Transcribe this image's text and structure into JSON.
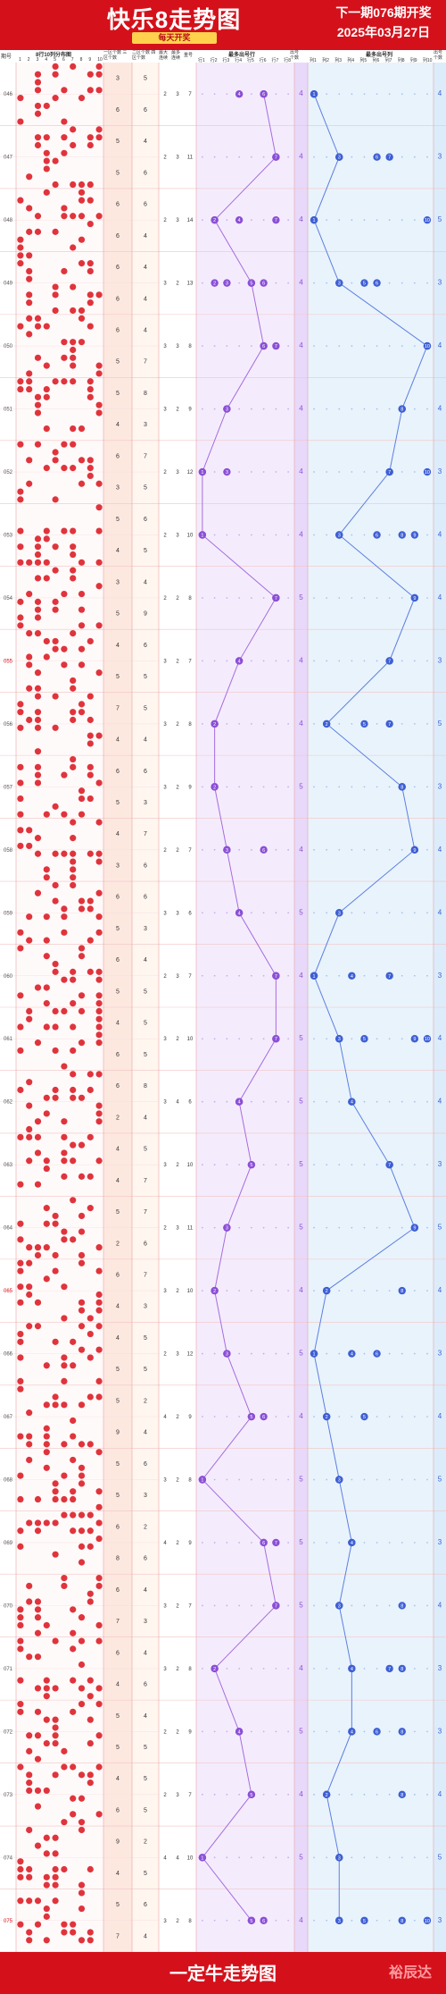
{
  "header": {
    "title": "快乐8走势图",
    "subtitle": "每天开奖",
    "next_issue": "下一期076期开奖",
    "draw_date": "2025年03月27日"
  },
  "columns": {
    "issue": "期号",
    "dist_title": "8行10列分布图",
    "dist_cols": [
      "1",
      "2",
      "3",
      "4",
      "5",
      "6",
      "7",
      "8",
      "9",
      "10"
    ],
    "area_a": "一区个数 三区个数",
    "area_b": "二区个数 四区个数",
    "max_col": "最大 连续",
    "max_row": "最多 连续",
    "repeat": "重号",
    "row_title": "最多出号行",
    "row_cols": [
      "行1",
      "行2",
      "行3",
      "行4",
      "行5",
      "行6",
      "行7",
      "行8"
    ],
    "row_count": "出号 个数",
    "col_title": "最多出号列",
    "col_cols": [
      "列1",
      "列2",
      "列3",
      "列4",
      "列5",
      "列6",
      "列7",
      "列8",
      "列9",
      "列10"
    ],
    "col_count": "出号 个数"
  },
  "colors": {
    "brand_red": "#d4111b",
    "row_line": "#a66be0",
    "col_line": "#5b7fe0",
    "ball_red": "#e0343c"
  },
  "footer": {
    "title": "一定牛走势图",
    "brand": "裕辰达"
  },
  "chart_data": {
    "type": "line",
    "issues": [
      "046",
      "047",
      "048",
      "049",
      "050",
      "051",
      "052",
      "053",
      "054",
      "055",
      "056",
      "057",
      "058",
      "059",
      "060",
      "061",
      "062",
      "063",
      "064",
      "065",
      "066",
      "067",
      "068",
      "069",
      "070",
      "071",
      "072",
      "073",
      "074",
      "075"
    ],
    "area_counts": [
      [
        [
          3,
          5
        ],
        [
          6,
          6
        ]
      ],
      [
        [
          5,
          4
        ],
        [
          5,
          6
        ]
      ],
      [
        [
          6,
          6
        ],
        [
          6,
          4
        ]
      ],
      [
        [
          6,
          4
        ],
        [
          6,
          4
        ]
      ],
      [
        [
          6,
          4
        ],
        [
          5,
          7
        ]
      ],
      [
        [
          5,
          8
        ],
        [
          4,
          3
        ]
      ],
      [
        [
          6,
          7
        ],
        [
          3,
          5
        ]
      ],
      [
        [
          5,
          6
        ],
        [
          4,
          5
        ]
      ],
      [
        [
          3,
          4
        ],
        [
          5,
          9
        ]
      ],
      [
        [
          4,
          6
        ],
        [
          5,
          5
        ]
      ],
      [
        [
          7,
          5
        ],
        [
          4,
          4
        ]
      ],
      [
        [
          6,
          6
        ],
        [
          5,
          3
        ]
      ],
      [
        [
          4,
          7
        ],
        [
          3,
          6
        ]
      ],
      [
        [
          6,
          6
        ],
        [
          5,
          3
        ]
      ],
      [
        [
          6,
          4
        ],
        [
          5,
          5
        ]
      ],
      [
        [
          4,
          5
        ],
        [
          6,
          5
        ]
      ],
      [
        [
          6,
          8
        ],
        [
          2,
          4
        ]
      ],
      [
        [
          4,
          5
        ],
        [
          4,
          7
        ]
      ],
      [
        [
          5,
          7
        ],
        [
          2,
          6
        ]
      ],
      [
        [
          6,
          7
        ],
        [
          4,
          3
        ]
      ],
      [
        [
          4,
          5
        ],
        [
          5,
          5
        ]
      ],
      [
        [
          5,
          2
        ],
        [
          9,
          4
        ]
      ],
      [
        [
          5,
          6
        ],
        [
          5,
          3
        ]
      ],
      [
        [
          6,
          2
        ],
        [
          8,
          6
        ]
      ],
      [
        [
          6,
          4
        ],
        [
          7,
          3
        ]
      ],
      [
        [
          6,
          4
        ],
        [
          4,
          6
        ]
      ],
      [
        [
          5,
          4
        ],
        [
          5,
          5
        ]
      ],
      [
        [
          4,
          5
        ],
        [
          6,
          5
        ]
      ],
      [
        [
          9,
          2
        ],
        [
          4,
          5
        ]
      ],
      [
        [
          5,
          6
        ],
        [
          7,
          4
        ]
      ]
    ],
    "stats": [
      [
        2,
        3,
        7
      ],
      [
        2,
        3,
        11
      ],
      [
        2,
        3,
        14
      ],
      [
        3,
        2,
        13
      ],
      [
        3,
        3,
        8
      ],
      [
        3,
        2,
        9
      ],
      [
        2,
        3,
        12
      ],
      [
        2,
        3,
        10
      ],
      [
        2,
        2,
        8
      ],
      [
        3,
        2,
        7
      ],
      [
        3,
        2,
        8
      ],
      [
        3,
        2,
        9
      ],
      [
        2,
        2,
        7
      ],
      [
        3,
        3,
        6
      ],
      [
        2,
        3,
        7
      ],
      [
        3,
        2,
        10
      ],
      [
        3,
        4,
        6
      ],
      [
        3,
        2,
        10
      ],
      [
        2,
        3,
        11
      ],
      [
        3,
        2,
        10
      ],
      [
        2,
        3,
        12
      ],
      [
        4,
        2,
        9
      ],
      [
        3,
        2,
        8
      ],
      [
        4,
        2,
        9
      ],
      [
        3,
        2,
        7
      ],
      [
        3,
        2,
        8
      ],
      [
        2,
        2,
        9
      ],
      [
        2,
        3,
        7
      ],
      [
        4,
        4,
        10
      ],
      [
        3,
        2,
        8
      ]
    ],
    "row_highlights": [
      [
        4,
        6
      ],
      [
        7
      ],
      [
        2,
        4,
        7
      ],
      [
        2,
        3,
        5,
        6
      ],
      [
        6,
        7
      ],
      [
        3
      ],
      [
        1,
        3
      ],
      [
        1
      ],
      [
        7
      ],
      [
        4
      ],
      [
        2
      ],
      [
        2
      ],
      [
        3,
        6
      ],
      [
        4
      ],
      [
        7
      ],
      [
        7
      ],
      [
        4
      ],
      [
        5
      ],
      [
        3
      ],
      [
        2
      ],
      [
        3
      ],
      [
        5,
        6
      ],
      [
        1
      ],
      [
        6,
        7
      ],
      [
        7
      ],
      [
        2
      ],
      [
        4
      ],
      [
        5
      ],
      [
        1
      ],
      [
        5,
        6
      ]
    ],
    "row_trend": [
      6,
      7,
      2,
      5,
      6,
      3,
      1,
      1,
      7,
      4,
      2,
      2,
      3,
      4,
      7,
      7,
      4,
      5,
      3,
      2,
      3,
      5,
      1,
      6,
      7,
      2,
      4,
      5,
      1,
      5
    ],
    "row_count": [
      4,
      4,
      4,
      4,
      4,
      4,
      4,
      4,
      5,
      4,
      4,
      5,
      4,
      5,
      4,
      5,
      5,
      5,
      5,
      4,
      5,
      4,
      5,
      5,
      5,
      4,
      5,
      4,
      5,
      4
    ],
    "col_highlights": [
      [
        1
      ],
      [
        3,
        6,
        7
      ],
      [
        1,
        10
      ],
      [
        3,
        5,
        6
      ],
      [
        10
      ],
      [
        8
      ],
      [
        7,
        10
      ],
      [
        3,
        6,
        8,
        9
      ],
      [
        9
      ],
      [
        7
      ],
      [
        2,
        5,
        7
      ],
      [
        8
      ],
      [
        9
      ],
      [
        3
      ],
      [
        1,
        4,
        7
      ],
      [
        3,
        5,
        9,
        10
      ],
      [
        4
      ],
      [
        7
      ],
      [
        9
      ],
      [
        2,
        8
      ],
      [
        1,
        4,
        6
      ],
      [
        2,
        5
      ],
      [
        3
      ],
      [
        4
      ],
      [
        3,
        8
      ],
      [
        4,
        7,
        8
      ],
      [
        4,
        6,
        8
      ],
      [
        2,
        8
      ],
      [
        3
      ],
      [
        3,
        5,
        8,
        10
      ]
    ],
    "col_trend": [
      1,
      3,
      1,
      3,
      10,
      8,
      7,
      3,
      9,
      7,
      2,
      8,
      9,
      3,
      1,
      3,
      4,
      7,
      9,
      2,
      1,
      2,
      3,
      4,
      3,
      4,
      4,
      2,
      3,
      3
    ],
    "col_count": [
      4,
      3,
      5,
      3,
      4,
      4,
      3,
      4,
      4,
      3,
      5,
      3,
      4,
      4,
      3,
      4,
      4,
      3,
      5,
      4,
      3,
      4,
      5,
      3,
      4,
      3,
      3,
      4,
      5,
      3
    ],
    "red_issues": [
      "055",
      "065",
      "075"
    ]
  }
}
